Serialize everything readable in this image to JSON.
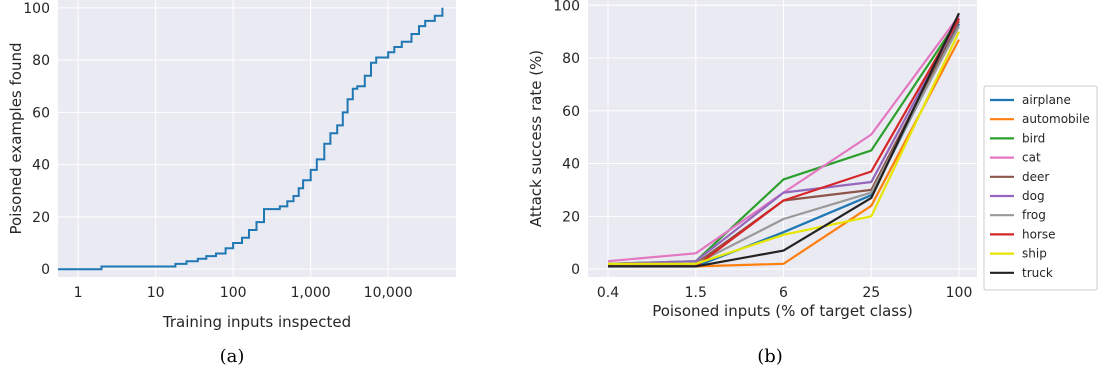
{
  "chart_data": [
    {
      "type": "line",
      "xlabel": "Training inputs inspected",
      "ylabel": "Poisoned examples found",
      "xscale": "log",
      "xlim": [
        0.55,
        75000
      ],
      "ylim": [
        -3,
        103
      ],
      "xticks": [
        1,
        10,
        100,
        1000,
        10000
      ],
      "xtick_labels": [
        "1",
        "10",
        "100",
        "1,000",
        "10,000"
      ],
      "yticks": [
        0,
        20,
        40,
        60,
        80,
        100
      ],
      "grid": true,
      "color": "#1f77b4",
      "caption": "(a)",
      "x": [
        0.55,
        1,
        2,
        3,
        5,
        10,
        15,
        18,
        25,
        35,
        45,
        60,
        80,
        100,
        130,
        160,
        200,
        250,
        300,
        400,
        500,
        600,
        700,
        800,
        1000,
        1200,
        1500,
        1800,
        2200,
        2600,
        3000,
        3500,
        4000,
        5000,
        6000,
        7000,
        8000,
        10000,
        12000,
        15000,
        20000,
        25000,
        30000,
        40000,
        50000
      ],
      "y": [
        0,
        0,
        1,
        1,
        1,
        1,
        1,
        2,
        3,
        4,
        5,
        6,
        8,
        10,
        12,
        15,
        18,
        23,
        23,
        24,
        26,
        28,
        31,
        34,
        38,
        42,
        48,
        52,
        55,
        60,
        65,
        69,
        70,
        74,
        79,
        81,
        81,
        83,
        85,
        87,
        90,
        93,
        95,
        97,
        100
      ]
    },
    {
      "type": "line",
      "xlabel": "Poisoned inputs (% of target class)",
      "ylabel": "Attack success rate (%)",
      "categories": [
        "0.4",
        "1.5",
        "6",
        "25",
        "100"
      ],
      "ylim": [
        -3,
        102
      ],
      "yticks": [
        0,
        20,
        40,
        60,
        80,
        100
      ],
      "grid": true,
      "legend": "right",
      "caption": "(b)",
      "series": [
        {
          "name": "airplane",
          "color": "#1f77b4",
          "values": [
            1,
            1,
            14,
            28,
            93
          ]
        },
        {
          "name": "automobile",
          "color": "#ff7f0e",
          "values": [
            1,
            1,
            2,
            24,
            87
          ]
        },
        {
          "name": "bird",
          "color": "#2ca02c",
          "values": [
            2,
            3,
            34,
            45,
            95
          ]
        },
        {
          "name": "cat",
          "color": "#e377c2",
          "values": [
            3,
            6,
            29,
            51,
            96
          ]
        },
        {
          "name": "deer",
          "color": "#8c564b",
          "values": [
            1,
            2,
            26,
            30,
            94
          ]
        },
        {
          "name": "dog",
          "color": "#9467bd",
          "values": [
            2,
            3,
            29,
            33,
            95
          ]
        },
        {
          "name": "frog",
          "color": "#999999",
          "values": [
            1,
            2,
            19,
            29,
            92
          ]
        },
        {
          "name": "horse",
          "color": "#d62728",
          "values": [
            1,
            1,
            26,
            37,
            95
          ]
        },
        {
          "name": "ship",
          "color": "#e6e600",
          "values": [
            2,
            2,
            13,
            20,
            90
          ]
        },
        {
          "name": "truck",
          "color": "#222222",
          "values": [
            1,
            1,
            7,
            27,
            97
          ]
        }
      ]
    }
  ]
}
